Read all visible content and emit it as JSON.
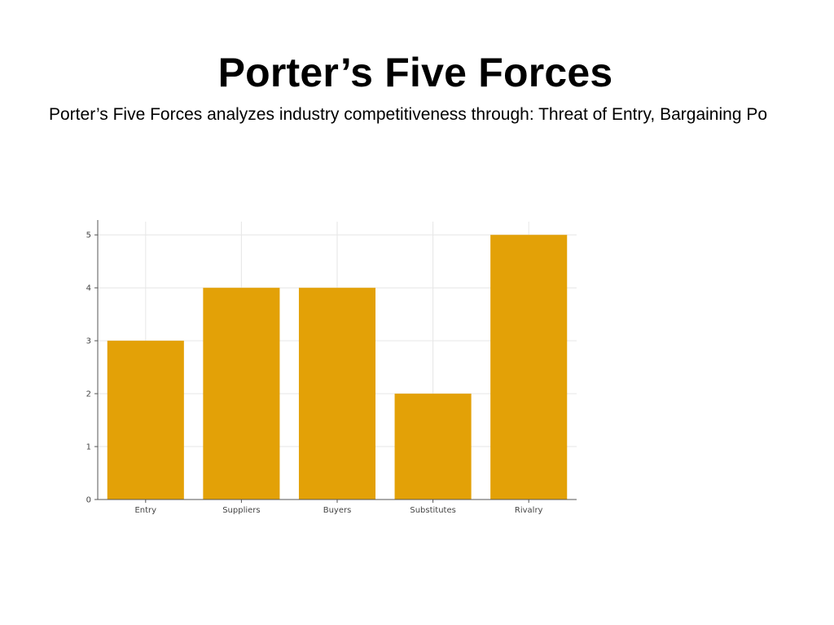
{
  "slide": {
    "title": "Porter’s Five Forces",
    "subtitle": "Porter’s Five Forces analyzes industry competitiveness through: Threat of Entry, Bargaining Po"
  },
  "chart_data": {
    "type": "bar",
    "title": "",
    "xlabel": "",
    "ylabel": "",
    "categories": [
      "Entry",
      "Suppliers",
      "Buyers",
      "Substitutes",
      "Rivalry"
    ],
    "values": [
      3,
      4,
      4,
      2,
      5
    ],
    "ylim": [
      0,
      5.25
    ],
    "yticks": [
      0,
      1,
      2,
      3,
      4,
      5
    ],
    "grid": true,
    "legend": "none",
    "colors": {
      "bar": "#E3A107",
      "axis": "#555555",
      "grid": "#e6e6e6"
    }
  }
}
